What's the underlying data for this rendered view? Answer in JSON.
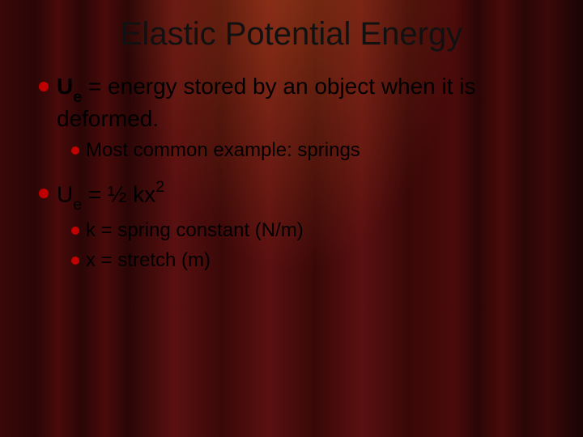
{
  "title": "Elastic Potential Energy",
  "bullet_color_l1": "#c00000",
  "bullet_color_l2": "#c00000",
  "items": {
    "a": {
      "sym": "U",
      "sub": "e",
      "rest": " = energy stored by an object when it is deformed."
    },
    "a1": "Most common example: springs",
    "b": {
      "sym": "U",
      "sub": "e",
      "mid": " = ½ kx",
      "sup": "2"
    },
    "b1": "k = spring constant (N/m)",
    "b2": "x = stretch (m)"
  }
}
